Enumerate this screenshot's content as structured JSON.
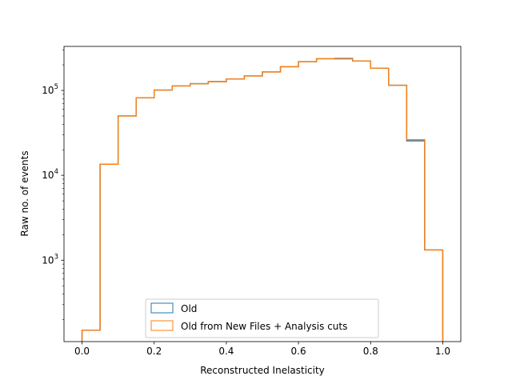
{
  "chart_data": {
    "type": "histogram-step",
    "xlabel": "Reconstructed Inelasticity",
    "ylabel": "Raw no. of events",
    "yscale": "log",
    "xlim": [
      -0.05,
      1.05
    ],
    "ylim": [
      110,
      330000
    ],
    "grid": false,
    "legend_position": "bottom-center",
    "bin_edges": [
      0.0,
      0.05,
      0.1,
      0.15,
      0.2,
      0.25,
      0.3,
      0.35,
      0.4,
      0.45,
      0.5,
      0.55,
      0.6,
      0.65,
      0.7,
      0.75,
      0.8,
      0.85,
      0.9,
      0.95,
      1.0
    ],
    "x_ticks": [
      {
        "value": 0.0,
        "label": "0.0"
      },
      {
        "value": 0.2,
        "label": "0.2"
      },
      {
        "value": 0.4,
        "label": "0.4"
      },
      {
        "value": 0.6,
        "label": "0.6"
      },
      {
        "value": 0.8,
        "label": "0.8"
      },
      {
        "value": 1.0,
        "label": "1.0"
      }
    ],
    "y_ticks": [
      {
        "value": 1000,
        "base": "10",
        "exp": "3"
      },
      {
        "value": 10000,
        "base": "10",
        "exp": "4"
      },
      {
        "value": 100000,
        "base": "10",
        "exp": "5"
      }
    ],
    "series": [
      {
        "name": "Old",
        "color": "#1f77b4",
        "values": [
          150,
          13500,
          50000,
          82000,
          101000,
          113000,
          120000,
          127000,
          136000,
          148000,
          165000,
          190000,
          218000,
          236000,
          238000,
          222000,
          183000,
          115000,
          25500,
          1320
        ]
      },
      {
        "name": "Old from New Files + Analysis cuts",
        "color": "#ff7f0e",
        "values": [
          150,
          13500,
          50000,
          82000,
          101000,
          113000,
          120000,
          127000,
          136000,
          148000,
          165000,
          190000,
          218000,
          236000,
          235000,
          222000,
          183000,
          115000,
          26300,
          1320
        ]
      }
    ]
  }
}
